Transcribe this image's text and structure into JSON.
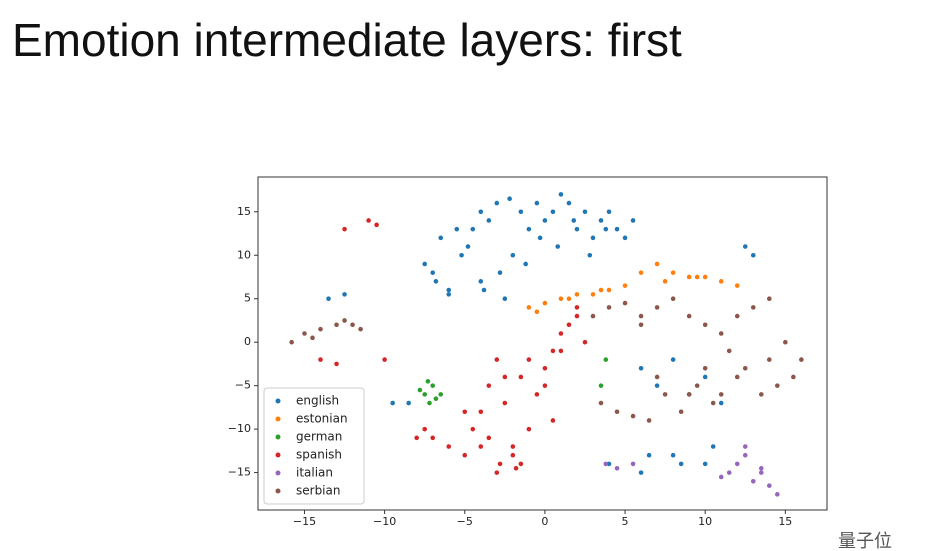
{
  "chart_data": {
    "type": "scatter",
    "title": "Emotion intermediate layers: first",
    "xlim": [
      -17.9,
      17.6
    ],
    "ylim": [
      -19.3,
      19
    ],
    "xticks": [
      {
        "value": -15,
        "label": "−15"
      },
      {
        "value": -10,
        "label": "−10"
      },
      {
        "value": -5,
        "label": "−5"
      },
      0,
      5,
      10,
      15
    ],
    "yticks": [
      {
        "value": -15,
        "label": "−15"
      },
      {
        "value": -10,
        "label": "−10"
      },
      {
        "value": -5,
        "label": "−5"
      },
      0,
      5,
      10,
      15
    ],
    "legend": "lower left",
    "series": [
      {
        "name": "english",
        "color": "#1f77b4",
        "x": [
          -7.5,
          -6.8,
          -6,
          -5.2,
          -4.5,
          -4,
          -3.5,
          -3,
          -2.2,
          -1.5,
          -1,
          -0.5,
          0,
          0.5,
          1,
          1.5,
          2,
          2.5,
          3,
          3.5,
          4,
          4.5,
          5,
          5.5,
          -6.5,
          -5.5,
          -4.8,
          -3.8,
          -2.8,
          -2,
          -1.2,
          -0.3,
          0.8,
          1.8,
          2.8,
          3.8,
          -7,
          -6,
          -4,
          -2.5,
          6,
          7,
          8,
          9,
          10,
          11,
          6.5,
          8.5,
          10.5,
          4,
          6,
          8,
          10,
          -9.5,
          -8.5,
          -13.5,
          -12.5,
          12.5,
          13
        ],
        "values": [
          9,
          7,
          5.5,
          10,
          13,
          15,
          14,
          16,
          16.5,
          15,
          13,
          16,
          14,
          15,
          17,
          16,
          13,
          15,
          12,
          14,
          15,
          13,
          12,
          14,
          12,
          13,
          11,
          6,
          8,
          10,
          9,
          12,
          11,
          14,
          10,
          13,
          8,
          6,
          7,
          5,
          -3,
          -5,
          -2,
          -6,
          -4,
          -7,
          -13,
          -14,
          -12,
          -14,
          -15,
          -13,
          -14,
          -7,
          -7,
          5,
          5.5,
          11,
          10
        ]
      },
      {
        "name": "estonian",
        "color": "#ff7f0e",
        "x": [
          -1,
          0,
          1,
          2,
          3,
          4,
          5,
          6,
          7,
          8,
          9,
          10,
          11,
          12,
          -0.5,
          1.5,
          3.5,
          7.5,
          9.5
        ],
        "values": [
          4,
          4.5,
          5,
          5.5,
          5.5,
          6,
          6.5,
          8,
          9,
          8,
          7.5,
          7.5,
          7,
          6.5,
          3.5,
          5,
          6,
          7,
          7.5
        ]
      },
      {
        "name": "german",
        "color": "#2ca02c",
        "x": [
          -7.5,
          -7.2,
          -7,
          -6.8,
          -7.3,
          -6.5,
          -7.8,
          3.5,
          3.8
        ],
        "values": [
          -6,
          -7,
          -5,
          -6.5,
          -4.5,
          -6,
          -5.5,
          -5,
          -2
        ]
      },
      {
        "name": "spanish",
        "color": "#d62728",
        "x": [
          -12.5,
          -11,
          -10.5,
          -8,
          -7.5,
          -5,
          -4.5,
          -4,
          -3.5,
          -3,
          -2.5,
          -2,
          -1.5,
          -1,
          -0.5,
          0,
          0.5,
          1,
          1.5,
          2,
          2.5,
          -3,
          -2,
          -1,
          0,
          -4,
          -5,
          -3.5,
          -2.5,
          -1.5,
          0.5,
          1,
          2,
          -7,
          -6,
          -2.8,
          -1.8,
          -10,
          -14,
          -13
        ],
        "values": [
          13,
          14,
          13.5,
          -11,
          -10,
          -13,
          -10,
          -8,
          -5,
          -2,
          -4,
          -13,
          -14,
          -10,
          -6,
          -3,
          -9,
          -1,
          2,
          4,
          0,
          -15,
          -12,
          -2,
          -5,
          -12,
          -8,
          -11,
          -7,
          -4,
          -1,
          1,
          3,
          -11,
          -12,
          -14,
          -14.5,
          -2,
          -2,
          -2.5
        ]
      },
      {
        "name": "italian",
        "color": "#9467bd",
        "x": [
          3.8,
          4.5,
          5.5,
          11.5,
          12,
          12.5,
          13,
          13.5,
          14,
          14.5,
          12.5,
          13.5,
          11
        ],
        "values": [
          -14,
          -14.5,
          -14,
          -15,
          -14,
          -13,
          -16,
          -15,
          -16.5,
          -17.5,
          -12,
          -14.5,
          -15.5
        ]
      },
      {
        "name": "serbian",
        "color": "#8c564b",
        "x": [
          -15.8,
          -15,
          -14,
          -13,
          -12,
          -11.5,
          -14.5,
          -12.5,
          3,
          4,
          5,
          6,
          7,
          8,
          9,
          10,
          11,
          12,
          13,
          14,
          15,
          16,
          15.5,
          14.5,
          13.5,
          12.5,
          11.5,
          10.5,
          9.5,
          8.5,
          7.5,
          6.5,
          5.5,
          4.5,
          3.5,
          6,
          7,
          10,
          12,
          14,
          11,
          9
        ],
        "values": [
          0,
          1,
          1.5,
          2,
          2,
          1.5,
          0.5,
          2.5,
          3,
          4,
          4.5,
          3,
          4,
          5,
          3,
          2,
          1,
          3,
          4,
          5,
          0,
          -2,
          -4,
          -5,
          -6,
          -3,
          -1,
          -7,
          -5,
          -8,
          -6,
          -9,
          -8.5,
          -8,
          -7,
          2,
          -4,
          -3,
          -4,
          -2,
          -6,
          -6
        ]
      }
    ]
  },
  "watermark": "量子位"
}
